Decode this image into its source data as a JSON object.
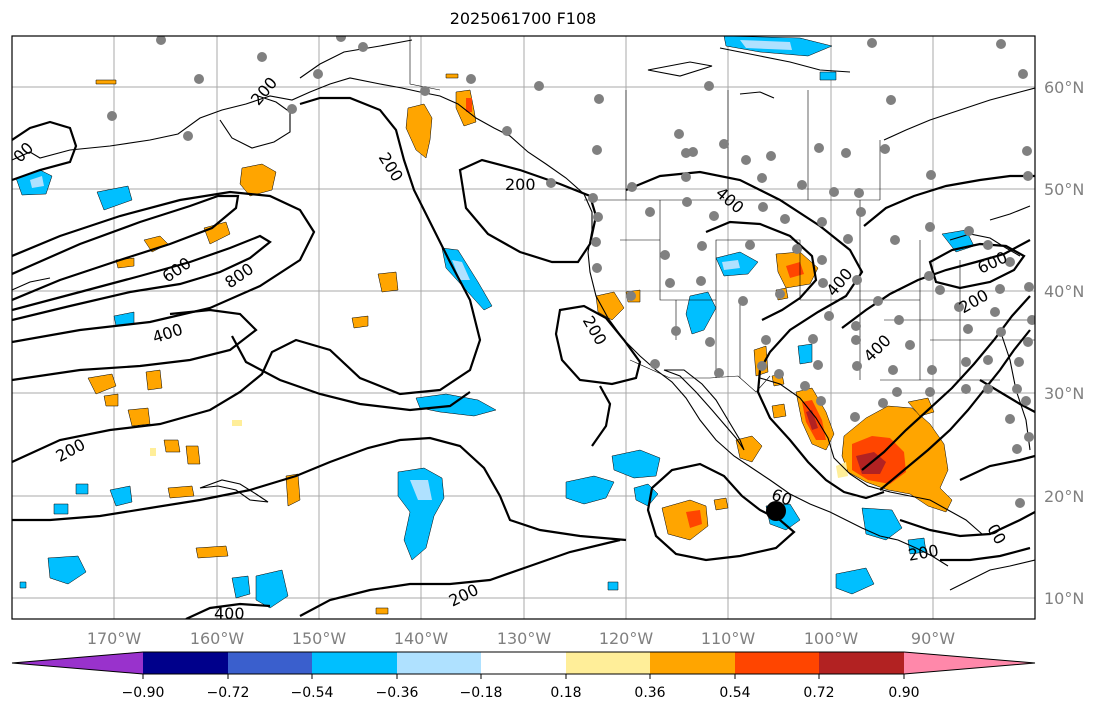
{
  "title": "2025061700 F108",
  "lon_labels": [
    "170°W",
    "160°W",
    "150°W",
    "140°W",
    "130°W",
    "120°W",
    "110°W",
    "100°W",
    "90°W"
  ],
  "lat_labels": [
    "60°N",
    "50°N",
    "40°N",
    "30°N",
    "20°N",
    "10°N"
  ],
  "colorbar": {
    "ticks": [
      "−0.90",
      "−0.72",
      "−0.54",
      "−0.36",
      "−0.18",
      "0.18",
      "0.36",
      "0.54",
      "0.72",
      "0.90"
    ],
    "colors": [
      "#9932cc",
      "#00008b",
      "#3a5fcd",
      "#00bfff",
      "#afe1ff",
      "#ffffff",
      "#ffee99",
      "#ffa500",
      "#ff4500",
      "#b22222",
      "#ff88aa"
    ]
  },
  "contour_labels": [
    "200",
    "200",
    "200",
    "200",
    "200",
    "200",
    "200",
    "200",
    "400",
    "400",
    "400",
    "400",
    "400",
    "600",
    "600",
    "800",
    "00",
    "00",
    "60",
    "600"
  ],
  "colors": {
    "positive": "#ffa500",
    "strong_positive": "#ff4500",
    "peak": "#b22222",
    "negative": "#00bfff",
    "weak_negative": "#afe1ff",
    "station": "#808080"
  }
}
